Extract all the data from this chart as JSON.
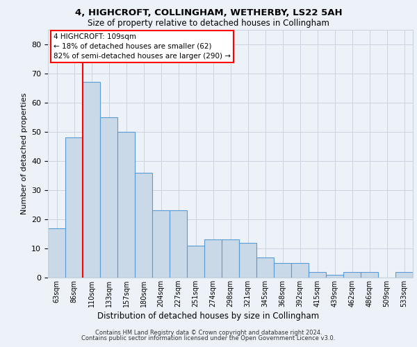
{
  "title1": "4, HIGHCROFT, COLLINGHAM, WETHERBY, LS22 5AH",
  "title2": "Size of property relative to detached houses in Collingham",
  "xlabel": "Distribution of detached houses by size in Collingham",
  "ylabel": "Number of detached properties",
  "categories": [
    "63sqm",
    "86sqm",
    "110sqm",
    "133sqm",
    "157sqm",
    "180sqm",
    "204sqm",
    "227sqm",
    "251sqm",
    "274sqm",
    "298sqm",
    "321sqm",
    "345sqm",
    "368sqm",
    "392sqm",
    "415sqm",
    "439sqm",
    "462sqm",
    "486sqm",
    "509sqm",
    "533sqm"
  ],
  "values": [
    17,
    48,
    67,
    55,
    50,
    36,
    23,
    23,
    11,
    13,
    13,
    12,
    7,
    5,
    5,
    2,
    1,
    2,
    2,
    0,
    2
  ],
  "bar_color": "#c9d9e8",
  "bar_edge_color": "#5b9bd5",
  "annotation_text": "4 HIGHCROFT: 109sqm\n← 18% of detached houses are smaller (62)\n82% of semi-detached houses are larger (290) →",
  "annotation_box_color": "white",
  "annotation_box_edge_color": "red",
  "ylim": [
    0,
    85
  ],
  "yticks": [
    0,
    10,
    20,
    30,
    40,
    50,
    60,
    70,
    80
  ],
  "grid_color": "#c8d4e0",
  "footer1": "Contains HM Land Registry data © Crown copyright and database right 2024.",
  "footer2": "Contains public sector information licensed under the Open Government Licence v3.0.",
  "bg_color": "#edf2f8",
  "plot_bg_color": "#edf2f8"
}
